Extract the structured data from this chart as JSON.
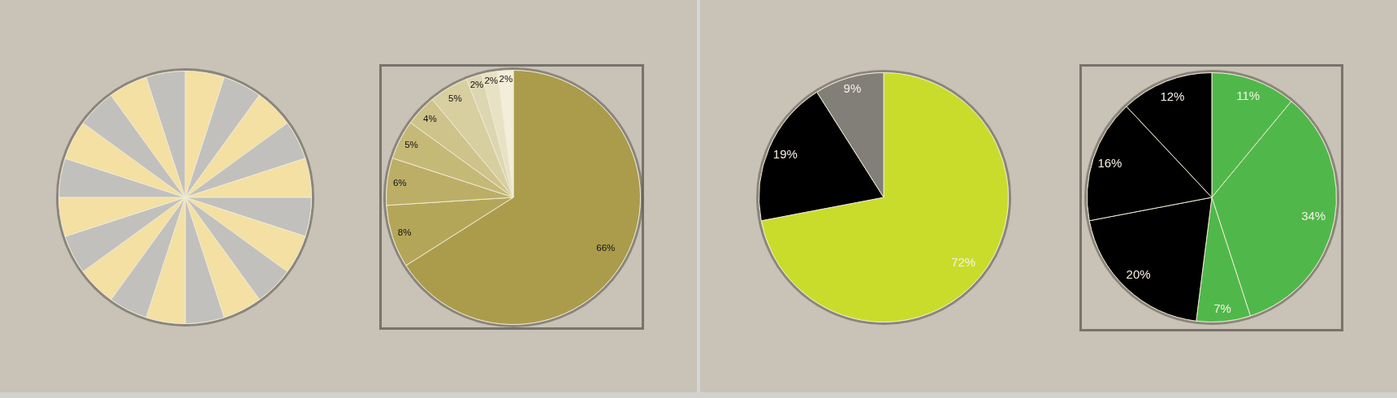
{
  "chart_data": [
    {
      "type": "pie",
      "categories": [
        null,
        null,
        null,
        null,
        null,
        null,
        null,
        null,
        null,
        null,
        null,
        null,
        null,
        null,
        null,
        null,
        null,
        null,
        null,
        null
      ],
      "values": [
        5,
        5,
        5,
        5,
        5,
        5,
        5,
        5,
        5,
        5,
        5,
        5,
        5,
        5,
        5,
        5,
        5,
        5,
        5,
        5
      ],
      "colors": [
        "#f3e0a2",
        "#c1c0bd",
        "#f3e0a2",
        "#c1c0bd",
        "#f3e0a2",
        "#c1c0bd",
        "#f3e0a2",
        "#c1c0bd",
        "#f3e0a2",
        "#c1c0bd",
        "#f3e0a2",
        "#c1c0bd",
        "#f3e0a2",
        "#c1c0bd",
        "#f3e0a2",
        "#c1c0bd",
        "#f3e0a2",
        "#c1c0bd",
        "#f3e0a2",
        "#c1c0bd"
      ]
    },
    {
      "type": "pie",
      "categories": [
        null,
        null,
        null,
        null,
        null,
        null,
        null,
        null,
        null
      ],
      "values": [
        66,
        8,
        6,
        5,
        4,
        5,
        2,
        2,
        2
      ],
      "colors": [
        "#ab9c4c",
        "#b4a659",
        "#bcae67",
        "#c5b978",
        "#cec38a",
        "#d8cfa0",
        "#ddd6b2",
        "#e8e1c3",
        "#f3eed9"
      ],
      "value_labels": [
        "66%",
        "8%",
        "6%",
        "5%",
        "4%",
        "5%",
        "2%",
        "2%",
        "2%"
      ]
    },
    {
      "type": "pie",
      "categories": [
        null,
        null,
        null
      ],
      "values": [
        72,
        19,
        9
      ],
      "colors": [
        "#c9dc2b",
        "#000000",
        "#827e78"
      ],
      "value_labels": [
        "72%",
        "19%",
        "9%"
      ]
    },
    {
      "type": "pie",
      "categories": [
        null,
        null,
        null,
        null,
        null,
        null
      ],
      "values": [
        11,
        34,
        7,
        20,
        16,
        12
      ],
      "colors": [
        "#50b84b",
        "#50b84b",
        "#50b84b",
        "#000000",
        "#000000",
        "#000000"
      ],
      "value_labels": [
        "11%",
        "34%",
        "7%",
        "20%",
        "16%",
        "12%"
      ]
    }
  ]
}
